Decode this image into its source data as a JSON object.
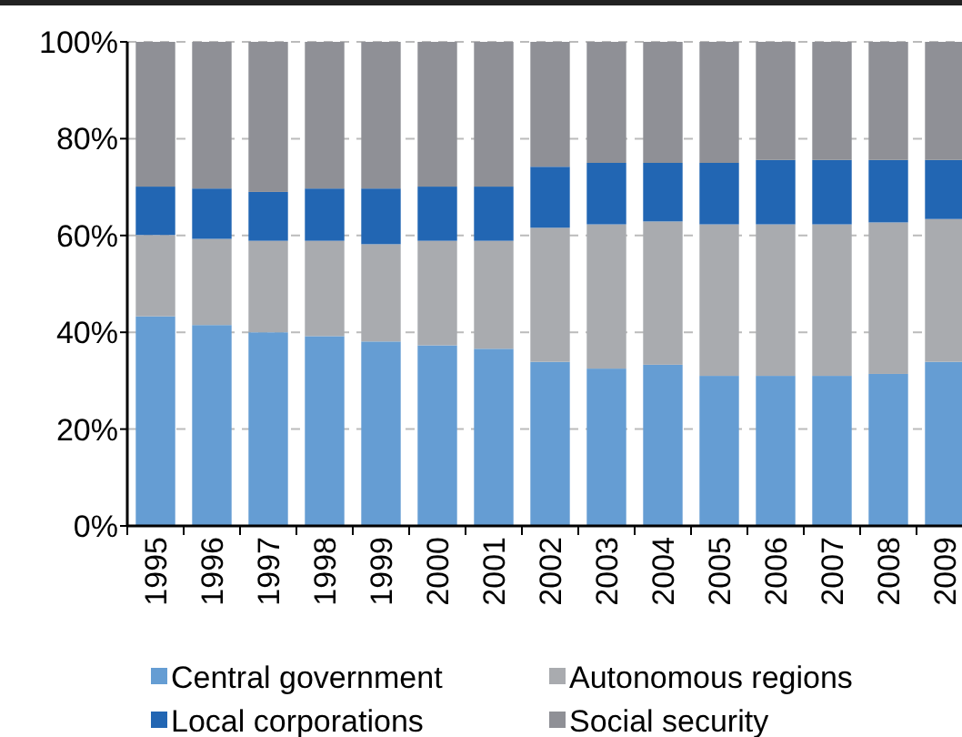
{
  "chart_data": {
    "type": "bar",
    "stacked": true,
    "categories": [
      "1995",
      "1996",
      "1997",
      "1998",
      "1999",
      "2000",
      "2001",
      "2002",
      "2003",
      "2004",
      "2005",
      "2006",
      "2007",
      "2008",
      "2009"
    ],
    "series": [
      {
        "name": "Central government",
        "color": "#659dd3",
        "values": [
          43.3,
          41.5,
          40.0,
          39.2,
          38.1,
          37.3,
          36.6,
          33.9,
          32.5,
          33.3,
          31.0,
          31.0,
          31.0,
          31.4,
          33.9
        ]
      },
      {
        "name": "Autonomous regions",
        "color": "#a9abaf",
        "values": [
          16.8,
          17.8,
          18.9,
          19.7,
          20.1,
          21.6,
          22.3,
          27.7,
          29.8,
          29.6,
          31.3,
          31.3,
          31.3,
          31.3,
          29.5
        ]
      },
      {
        "name": "Local corporations",
        "color": "#2266b3",
        "values": [
          10.0,
          10.4,
          10.1,
          10.8,
          11.5,
          11.2,
          11.2,
          12.6,
          12.7,
          12.1,
          12.7,
          13.3,
          13.3,
          12.9,
          12.2
        ]
      },
      {
        "name": "Social security",
        "color": "#8f9096",
        "values": [
          29.9,
          30.3,
          31.0,
          30.3,
          30.3,
          29.9,
          29.9,
          25.8,
          25.0,
          25.0,
          25.0,
          24.4,
          24.4,
          24.4,
          24.4
        ]
      }
    ],
    "ylim": [
      0,
      100
    ],
    "yticks": [
      {
        "value": 0,
        "label": "0%"
      },
      {
        "value": 20,
        "label": "20%"
      },
      {
        "value": 40,
        "label": "40%"
      },
      {
        "value": 60,
        "label": "60%"
      },
      {
        "value": 80,
        "label": "80%"
      },
      {
        "value": 100,
        "label": "100%"
      }
    ],
    "grid": "y",
    "legend": "bottom"
  }
}
